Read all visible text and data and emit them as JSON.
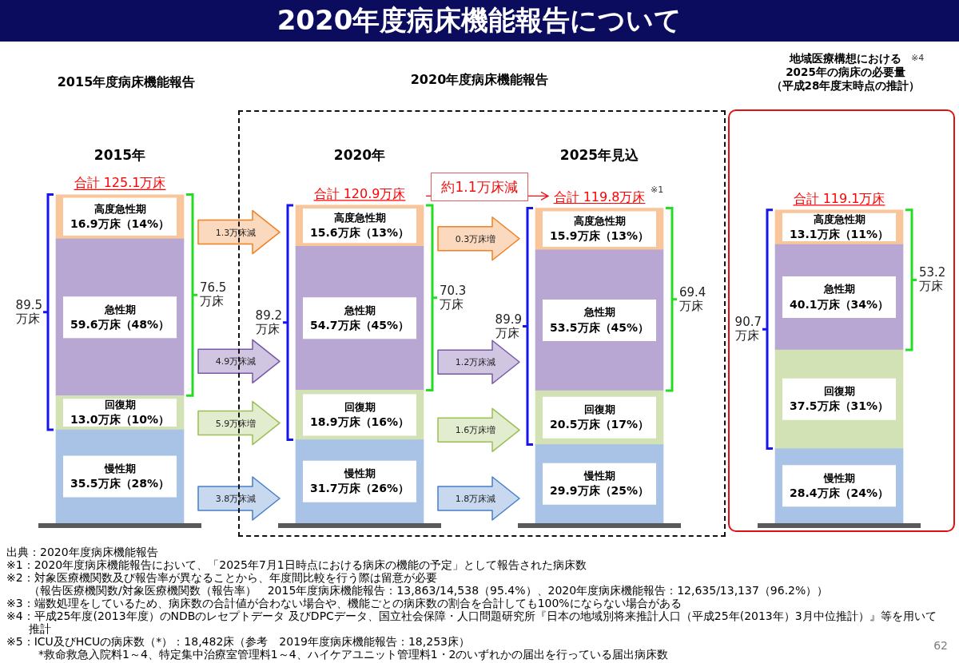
{
  "chart_data": {
    "type": "bar",
    "title": "2020年度病床機能報告について",
    "categories": [
      "2015年",
      "2020年",
      "2025年見込",
      null
    ],
    "stacked": true,
    "tick_labels": "x",
    "series": [
      {
        "name": "慢性期",
        "color": "#a9c3e6",
        "values": [
          35.5,
          31.7,
          29.9,
          28.4
        ],
        "value_labels": [
          "35.5万床（28%）",
          "31.7万床（26%）",
          "29.9万床（25%）",
          "28.4万床（24%）"
        ]
      },
      {
        "name": "回復期",
        "color": "#d3e2b4",
        "values": [
          13.0,
          18.9,
          20.5,
          37.5
        ],
        "value_labels": [
          "13.0万床（10%）",
          "18.9万床（16%）",
          "20.5万床（17%）",
          "37.5万床（31%）"
        ]
      },
      {
        "name": "急性期",
        "color": "#b8a7d2",
        "values": [
          59.6,
          54.7,
          53.5,
          40.1
        ],
        "value_labels": [
          "59.6万床（48%）",
          "54.7万床（45%）",
          "53.5万床（45%）",
          "40.1万床（34%）"
        ]
      },
      {
        "name": "高度急性期",
        "color": "#f9c59a",
        "values": [
          16.9,
          15.6,
          15.9,
          13.1
        ],
        "value_labels": [
          "16.9万床（14%）",
          "15.6万床（13%）",
          "15.9万床（13%）",
          "13.1万床（11%）"
        ]
      }
    ],
    "totals": [
      "合計 125.1万床",
      "合計 120.9万床",
      "合計 119.8万床",
      "合計 119.1万床"
    ],
    "annotations": [
      "2015年度病床機能報告",
      "2020年度病床機能報告",
      "地域医療構想における",
      "2025年の病床の必要量",
      "（平成28年度末時点の推計）",
      "※4",
      "約1.1万床減",
      "※1",
      "1.3万床減",
      "4.9万床減",
      "5.9万床増",
      "3.8万床減",
      "0.3万床増",
      "1.2万床減",
      "1.6万床増",
      "1.8万床減",
      "89.5\n万床",
      "76.5\n万床",
      "89.2\n万床",
      "70.3\n万床",
      "89.9\n万床",
      "69.4\n万床",
      "90.7\n万床",
      "53.2\n万床",
      "出典：2020年度病床機能報告",
      "※1：2020年度病床機能報告において、「2025年7月1日時点における病床の機能の予定」として報告された病床数",
      "※2：対象医療機関数及び報告率が異なることから、年度間比較を行う際は留意が必要",
      "（報告医療機関数/対象医療機関数（報告率）　2015年度病床機能報告：13,863/14,538（95.4%）、2020年度病床機能報告：12,635/13,137（96.2%））",
      "※3：端数処理をしているため、病床数の合計値が合わない場合や、機能ごとの病床数の割合を合計しても100%にならない場合がある",
      "※4：平成25年度(2013年度）のNDBのレセプトデータ 及びDPCデータ、国立社会保障・人口問題研究所『日本の地域別将来推計人口（平成25年(2013年）3月中位推計）』等を用いて推計",
      "※5：ICU及びHCUの病床数（*）：18,482床（参考　2019年度病床機能報告：18,253床）",
      "*救命救急入院料1～4、特定集中治療室管理料1～4、ハイケアユニット管理料1・2のいずれかの届出を行っている届出病床数",
      "62"
    ]
  }
}
